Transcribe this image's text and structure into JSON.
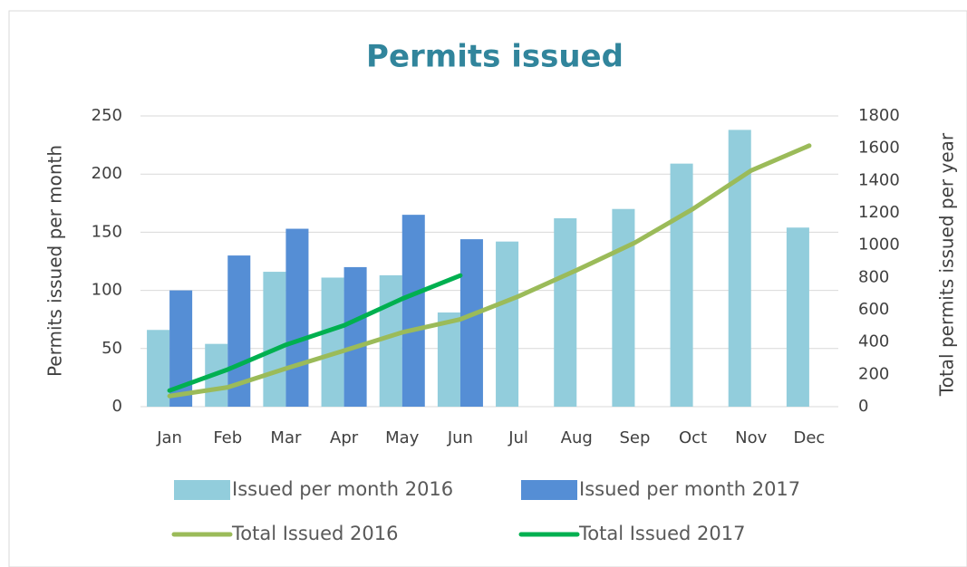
{
  "chart_data": {
    "type": "bar",
    "title": "Permits issued",
    "y_label": "Permits issued per month",
    "y2_label": "Total permits issued per year",
    "categories": [
      "Jan",
      "Feb",
      "Mar",
      "Apr",
      "May",
      "Jun",
      "Jul",
      "Aug",
      "Sep",
      "Oct",
      "Nov",
      "Dec"
    ],
    "series": [
      {
        "name": "Issued per month 2016",
        "type": "bar",
        "axis": "y",
        "color": "#92cddc",
        "values": [
          66,
          54,
          116,
          111,
          113,
          81,
          142,
          162,
          170,
          209,
          238,
          154
        ]
      },
      {
        "name": "Issued per month 2017",
        "type": "bar",
        "axis": "y",
        "color": "#558ed5",
        "values": [
          100,
          130,
          153,
          120,
          165,
          144,
          null,
          null,
          null,
          null,
          null,
          null
        ]
      },
      {
        "name": "Total Issued 2016",
        "type": "line",
        "axis": "y2",
        "color": "#9bbb59",
        "values": [
          66,
          120,
          236,
          347,
          460,
          541,
          683,
          845,
          1015,
          1224,
          1462,
          1616
        ]
      },
      {
        "name": "Total Issued 2017",
        "type": "line",
        "axis": "y2",
        "color": "#00b050",
        "values": [
          100,
          230,
          383,
          503,
          668,
          812,
          null,
          null,
          null,
          null,
          null,
          null
        ]
      }
    ],
    "ylim": [
      0,
      250
    ],
    "yticks": [
      0,
      50,
      100,
      150,
      200,
      250
    ],
    "y2lim": [
      0,
      1800
    ],
    "y2ticks": [
      0,
      200,
      400,
      600,
      800,
      1000,
      1200,
      1400,
      1600,
      1800
    ],
    "grid": true,
    "legend": "bottom"
  }
}
